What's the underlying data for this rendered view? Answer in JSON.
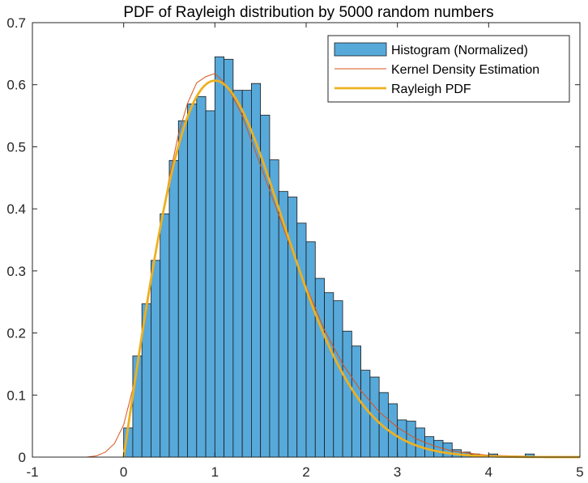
{
  "chart_data": {
    "type": "bar",
    "title": "PDF of Rayleigh distribution by 5000 random numbers",
    "xlabel": "",
    "ylabel": "",
    "xlim": [
      -1,
      5
    ],
    "ylim": [
      0,
      0.7
    ],
    "x_ticks": [
      "-1",
      "0",
      "1",
      "2",
      "3",
      "4",
      "5"
    ],
    "y_ticks": [
      "0",
      "0.1",
      "0.2",
      "0.3",
      "0.4",
      "0.5",
      "0.6",
      "0.7"
    ],
    "grid": false,
    "legend_position": "top-right",
    "histogram": {
      "name": "Histogram (Normalized)",
      "bin_edges_start": 0,
      "bin_width": 0.1,
      "values": [
        0.047,
        0.163,
        0.247,
        0.317,
        0.392,
        0.478,
        0.542,
        0.569,
        0.581,
        0.558,
        0.645,
        0.641,
        0.591,
        0.591,
        0.602,
        0.551,
        0.479,
        0.428,
        0.419,
        0.377,
        0.347,
        0.288,
        0.265,
        0.252,
        0.203,
        0.179,
        0.14,
        0.129,
        0.104,
        0.086,
        0.06,
        0.058,
        0.047,
        0.033,
        0.027,
        0.023,
        0.012,
        0.008,
        0.005,
        0.001,
        0.005,
        0.001,
        0.001,
        0.001,
        0.005,
        0.001,
        0.001,
        0.001,
        0.001,
        0.001
      ],
      "color": "#4DBEEE"
    },
    "series": [
      {
        "name": "Kernel Density Estimation",
        "type": "line",
        "color": "#D95319",
        "x": [
          -1,
          -0.5,
          -0.4,
          -0.3,
          -0.2,
          -0.1,
          0,
          0.1,
          0.2,
          0.3,
          0.4,
          0.5,
          0.6,
          0.7,
          0.8,
          0.9,
          1.0,
          1.1,
          1.2,
          1.3,
          1.4,
          1.5,
          1.6,
          1.7,
          1.8,
          1.9,
          2.0,
          2.2,
          2.4,
          2.6,
          2.8,
          3.0,
          3.2,
          3.4,
          3.6,
          3.8,
          4.0,
          4.5,
          5.0
        ],
        "y": [
          0,
          0,
          0.0002,
          0.002,
          0.008,
          0.022,
          0.052,
          0.11,
          0.19,
          0.28,
          0.37,
          0.45,
          0.52,
          0.57,
          0.603,
          0.613,
          0.618,
          0.604,
          0.58,
          0.55,
          0.51,
          0.47,
          0.43,
          0.39,
          0.35,
          0.31,
          0.275,
          0.205,
          0.15,
          0.107,
          0.073,
          0.048,
          0.03,
          0.018,
          0.01,
          0.006,
          0.003,
          0.001,
          0
        ]
      },
      {
        "name": "Rayleigh PDF",
        "type": "line",
        "color": "#EDB120",
        "sigma": 1
      }
    ]
  }
}
